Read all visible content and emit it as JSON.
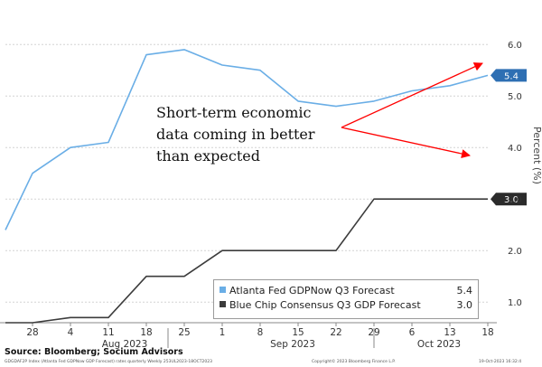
{
  "chart_data": {
    "type": "line",
    "x_ticks": [
      {
        "label": "28",
        "day": 28
      },
      {
        "label": "4",
        "day": 35
      },
      {
        "label": "11",
        "day": 42
      },
      {
        "label": "18",
        "day": 49
      },
      {
        "label": "25",
        "day": 56
      },
      {
        "label": "1",
        "day": 63
      },
      {
        "label": "8",
        "day": 70
      },
      {
        "label": "15",
        "day": 77
      },
      {
        "label": "22",
        "day": 84
      },
      {
        "label": "29",
        "day": 91
      },
      {
        "label": "6",
        "day": 98
      },
      {
        "label": "13",
        "day": 105
      },
      {
        "label": "18",
        "day": 112
      }
    ],
    "month_labels": [
      {
        "label": "Aug 2023",
        "day": 45
      },
      {
        "label": "Sep 2023",
        "day": 76
      },
      {
        "label": "Oct 2023",
        "day": 103
      }
    ],
    "month_separators": [
      53,
      91
    ],
    "xlim": [
      23,
      112
    ],
    "ylabel": "Percent (%)",
    "ylim": [
      0.6,
      6.1
    ],
    "y_ticks": [
      "1.0",
      "2.0",
      "3.0",
      "4.0",
      "5.0",
      "6.0"
    ],
    "series": [
      {
        "name": "Atlanta Fed GDPNow Q3 Forecast",
        "color": "#6aaee6",
        "last_value": "5.4",
        "points": [
          [
            23,
            2.4
          ],
          [
            28,
            3.5
          ],
          [
            35,
            4.0
          ],
          [
            42,
            4.1
          ],
          [
            49,
            5.8
          ],
          [
            56,
            5.9
          ],
          [
            63,
            5.6
          ],
          [
            70,
            5.5
          ],
          [
            77,
            4.9
          ],
          [
            84,
            4.8
          ],
          [
            91,
            4.9
          ],
          [
            98,
            5.1
          ],
          [
            105,
            5.2
          ],
          [
            112,
            5.4
          ]
        ]
      },
      {
        "name": "Blue Chip Consensus Q3 GDP Forecast",
        "color": "#3c3c3c",
        "last_value": "3.0",
        "points": [
          [
            23,
            0.6
          ],
          [
            28,
            0.6
          ],
          [
            35,
            0.7
          ],
          [
            42,
            0.7
          ],
          [
            49,
            1.5
          ],
          [
            56,
            1.5
          ],
          [
            63,
            2.0
          ],
          [
            70,
            2.0
          ],
          [
            77,
            2.0
          ],
          [
            84,
            2.0
          ],
          [
            91,
            3.0
          ],
          [
            98,
            3.0
          ],
          [
            105,
            3.0
          ],
          [
            112,
            3.0
          ]
        ]
      }
    ],
    "annotation": {
      "lines": [
        "Short-term economic",
        "data coming in better",
        "than expected"
      ],
      "color": "#ff0000"
    }
  },
  "source": "Source: Bloomberg; Socium Advisors",
  "footer": {
    "left": "GDGDAF2P Index (Atlanta Fed GDPNow GDP Forecast) rates quarterly Weekly 253UL2023-18OCT2023",
    "middle": "Copyright© 2023 Bloomberg Finance L.P.",
    "right": "19-Oct-2023 16:32:4"
  }
}
